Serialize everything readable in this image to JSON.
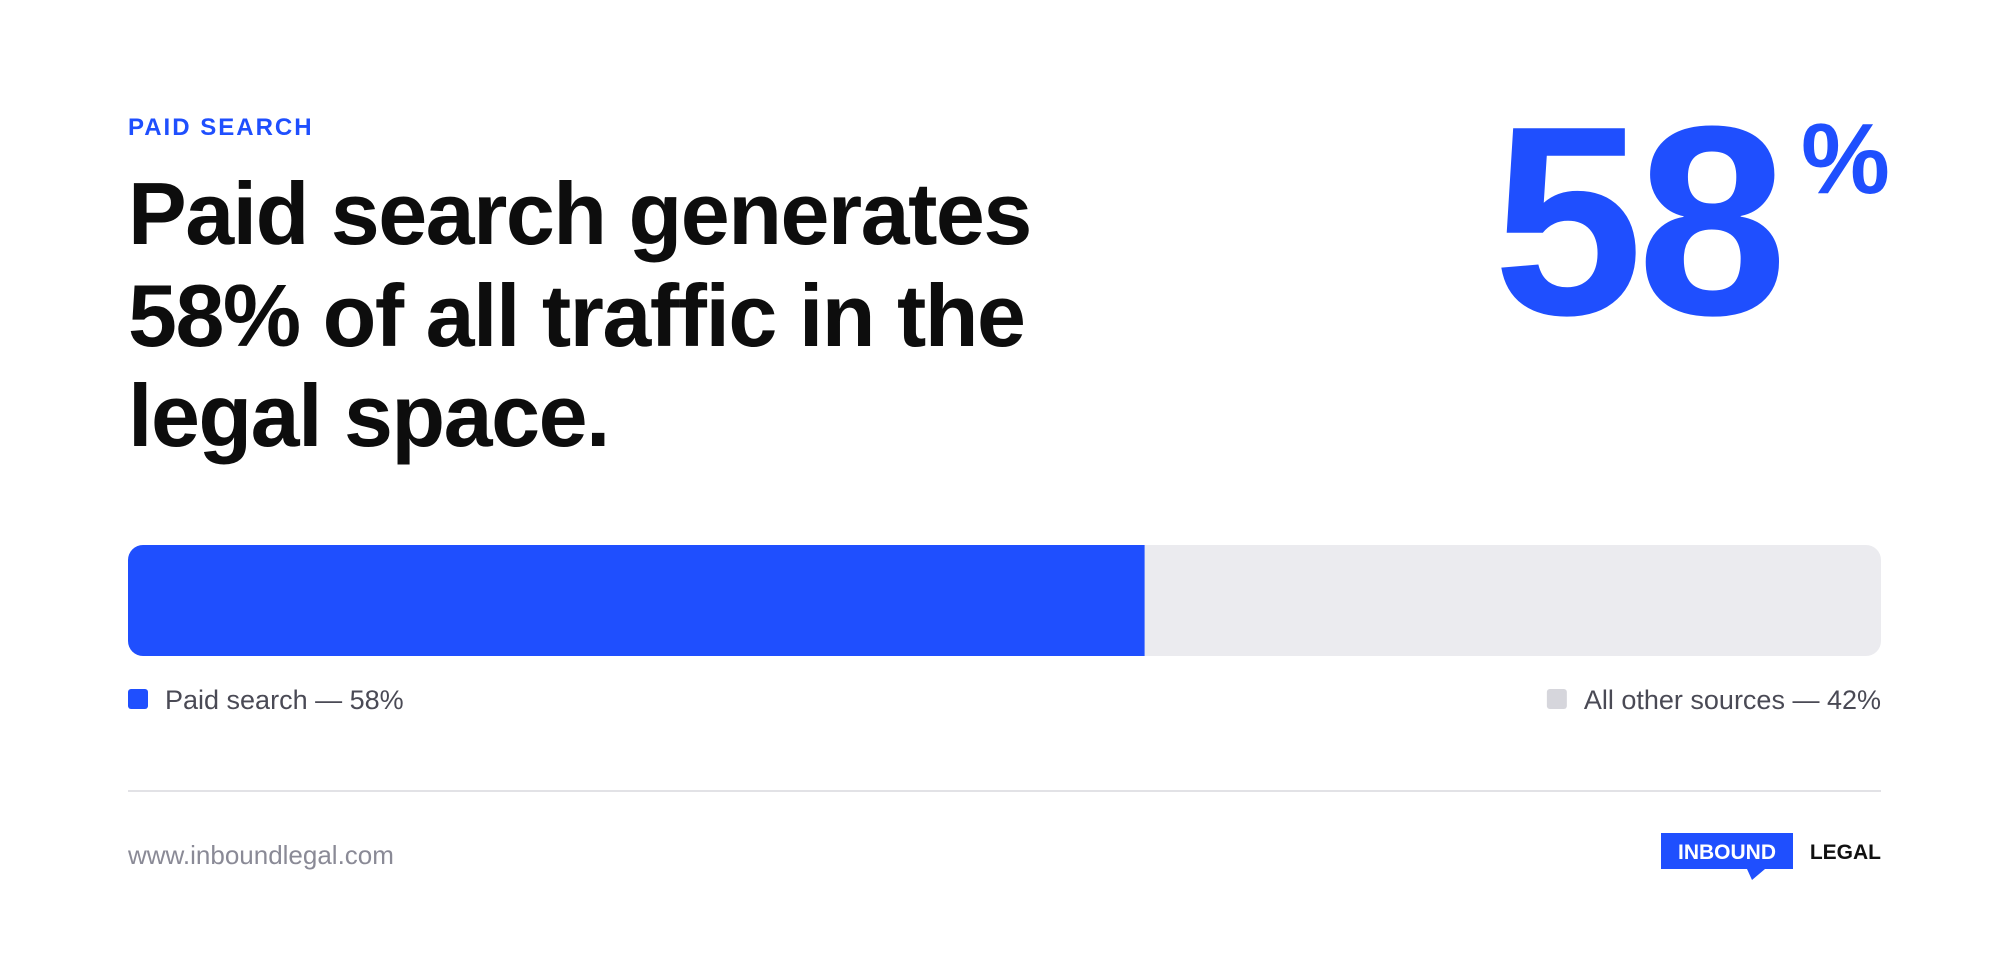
{
  "chart_data": {
    "type": "stacked-bar",
    "orientation": "horizontal",
    "eyebrow": "PAID SEARCH",
    "title": [
      "Paid search generates",
      "58% of all traffic in the",
      "legal space."
    ],
    "headline_stat": {
      "number": "58",
      "unit": "%"
    },
    "categories": [
      null
    ],
    "xlim": [
      0,
      100
    ],
    "series": [
      {
        "name": "Paid search — 58%",
        "color": "#1f4ffe",
        "values": [
          58
        ]
      },
      {
        "name": "All other sources — 42%",
        "color": "#ebebef",
        "values": [
          42
        ]
      }
    ],
    "footer": {
      "url": "www.inboundlegal.com",
      "logo": [
        "INBOUND",
        "LEGAL"
      ]
    }
  }
}
